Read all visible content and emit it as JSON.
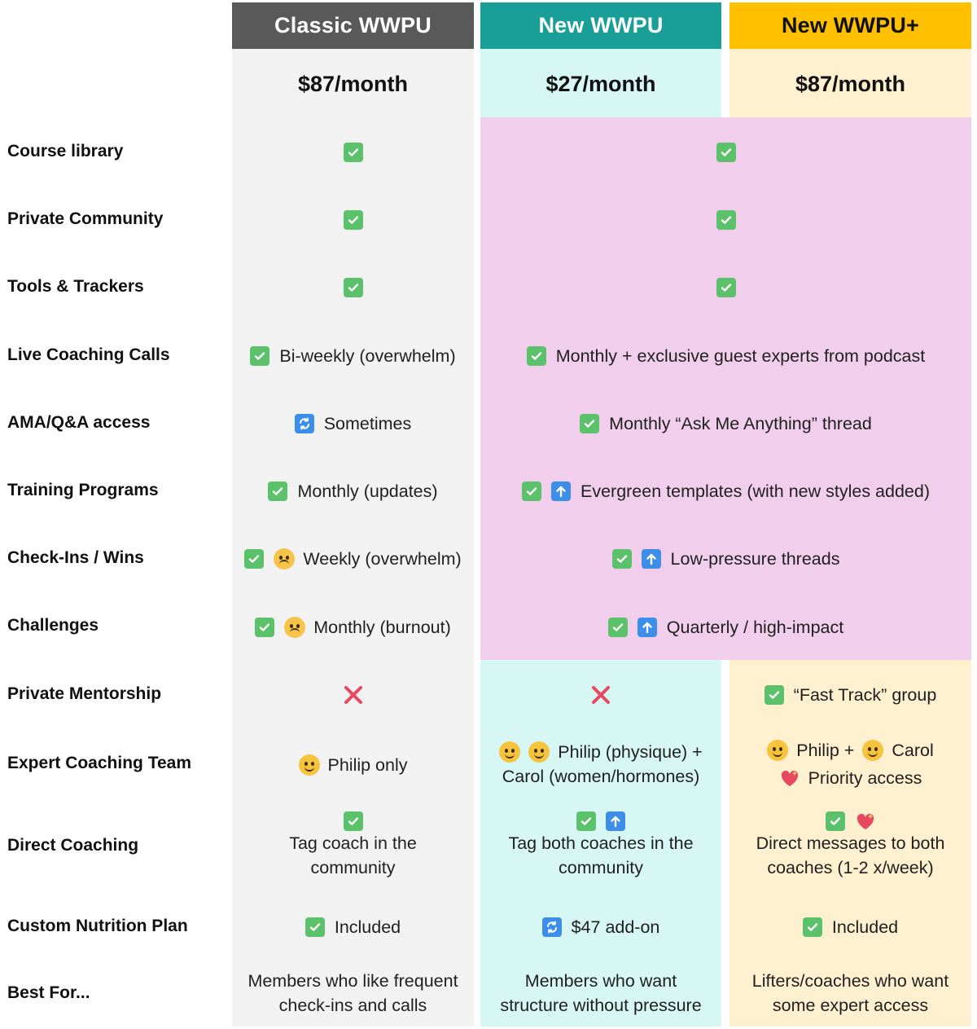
{
  "plans": [
    {
      "name": "Classic WWPU",
      "price": "$87/month",
      "header_color": "#595959",
      "header_text_color": "#ffffff",
      "body_color": "#f2f2f2"
    },
    {
      "name": "New WWPU",
      "price": "$27/month",
      "header_color": "#1a9e98",
      "header_text_color": "#ffffff",
      "body_color": "#d6f7f4"
    },
    {
      "name": "New WWPU+",
      "price": "$87/month",
      "header_color": "#ffc000",
      "header_text_color": "#111111",
      "body_color": "#fff0cf"
    }
  ],
  "shared_block_color": "#f1cfec",
  "rows": [
    {
      "label": "Course library"
    },
    {
      "label": "Private Community"
    },
    {
      "label": "Tools & Trackers"
    },
    {
      "label": "Live Coaching Calls"
    },
    {
      "label": "AMA/Q&A access"
    },
    {
      "label": "Training Programs"
    },
    {
      "label": "Check-Ins / Wins"
    },
    {
      "label": "Challenges"
    },
    {
      "label": "Private Mentorship"
    },
    {
      "label": "Expert Coaching Team"
    },
    {
      "label": "Direct Coaching"
    },
    {
      "label": "Custom Nutrition Plan"
    },
    {
      "label": "Best For..."
    }
  ],
  "cells": {
    "live_calls_classic": "Bi-weekly (overwhelm)",
    "live_calls_new": "Monthly + exclusive guest experts from podcast",
    "ama_classic": "Sometimes",
    "ama_new": "Monthly “Ask Me Anything” thread",
    "training_classic": "Monthly (updates)",
    "training_new": "Evergreen templates (with new styles added)",
    "checkins_classic": "Weekly (overwhelm)",
    "checkins_new": "Low-pressure threads",
    "challenges_classic": "Monthly (burnout)",
    "challenges_new": "Quarterly / high-impact",
    "mentorship_plus": "“Fast Track” group",
    "team_classic": "Philip only",
    "team_new_line1": "Philip (physique) +",
    "team_new_line2": "Carol (women/hormones)",
    "team_plus_philip": "Philip +",
    "team_plus_carol": "Carol",
    "team_plus_priority": "Priority access",
    "direct_classic_line1": "Tag coach in the",
    "direct_classic_line2": "community",
    "direct_new_line1": "Tag both coaches in the",
    "direct_new_line2": "community",
    "direct_plus_line1": "Direct messages to both",
    "direct_plus_line2": "coaches (1-2 x/week)",
    "nutrition_classic": "Included",
    "nutrition_new": "$47 add-on",
    "nutrition_plus": "Included",
    "best_classic_line1": "Members who like frequent",
    "best_classic_line2": "check-ins and calls",
    "best_new_line1": "Members who want",
    "best_new_line2": "structure without pressure",
    "best_plus_line1": "Lifters/coaches who want",
    "best_plus_line2": "some expert access"
  }
}
